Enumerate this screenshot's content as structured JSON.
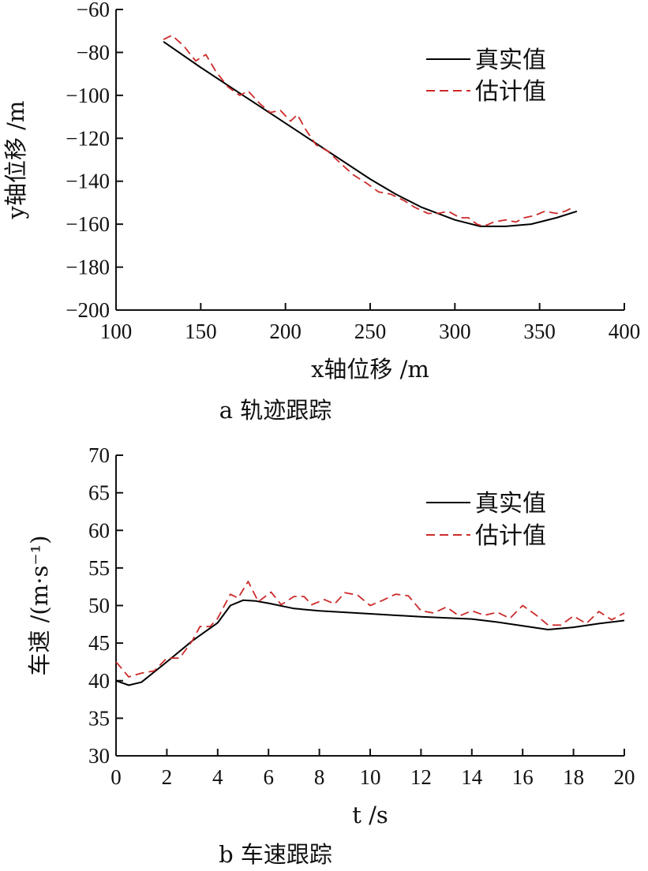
{
  "chart_data": [
    {
      "type": "line",
      "caption": "a 轨迹跟踪",
      "xlabel": "x轴位移 /m",
      "ylabel": "y轴位移 /m",
      "xlim": [
        100,
        400
      ],
      "ylim": [
        -200,
        -60
      ],
      "xticks": [
        100,
        150,
        200,
        250,
        300,
        350,
        400
      ],
      "yticks": [
        -200,
        -180,
        -160,
        -140,
        -120,
        -100,
        -80,
        -60
      ],
      "grid": false,
      "legend": "top-right",
      "series": [
        {
          "name": "真实值",
          "style": "solid",
          "color": "#000000",
          "points": [
            [
              128,
              -75
            ],
            [
              150,
              -87
            ],
            [
              175,
              -100
            ],
            [
              200,
              -113
            ],
            [
              225,
              -126
            ],
            [
              250,
              -139
            ],
            [
              265,
              -146
            ],
            [
              280,
              -152
            ],
            [
              300,
              -158
            ],
            [
              315,
              -161
            ],
            [
              330,
              -161
            ],
            [
              345,
              -160
            ],
            [
              360,
              -157
            ],
            [
              372,
              -154
            ]
          ]
        },
        {
          "name": "估计值",
          "style": "dashed",
          "color": "#cc2b2b",
          "points": [
            [
              128,
              -74
            ],
            [
              133,
              -72
            ],
            [
              140,
              -77
            ],
            [
              147,
              -84
            ],
            [
              153,
              -81
            ],
            [
              159,
              -89
            ],
            [
              166,
              -96
            ],
            [
              173,
              -100
            ],
            [
              178,
              -98
            ],
            [
              185,
              -104
            ],
            [
              191,
              -108
            ],
            [
              197,
              -107
            ],
            [
              203,
              -112
            ],
            [
              207,
              -109
            ],
            [
              212,
              -116
            ],
            [
              218,
              -123
            ],
            [
              225,
              -126
            ],
            [
              233,
              -132
            ],
            [
              240,
              -137
            ],
            [
              248,
              -141
            ],
            [
              255,
              -145
            ],
            [
              262,
              -146
            ],
            [
              270,
              -149
            ],
            [
              276,
              -152
            ],
            [
              284,
              -155
            ],
            [
              290,
              -155
            ],
            [
              296,
              -154
            ],
            [
              303,
              -157
            ],
            [
              308,
              -157
            ],
            [
              313,
              -160
            ],
            [
              317,
              -161
            ],
            [
              323,
              -159
            ],
            [
              330,
              -158
            ],
            [
              336,
              -159
            ],
            [
              341,
              -157
            ],
            [
              347,
              -156
            ],
            [
              353,
              -154
            ],
            [
              360,
              -155
            ],
            [
              365,
              -154
            ],
            [
              370,
              -152
            ]
          ]
        }
      ]
    },
    {
      "type": "line",
      "caption": "b 车速跟踪",
      "xlabel": "t /s",
      "ylabel": "车速 /(m·s⁻¹)",
      "xlim": [
        0,
        20
      ],
      "ylim": [
        30,
        70
      ],
      "xticks": [
        0,
        2,
        4,
        6,
        8,
        10,
        12,
        14,
        16,
        18,
        20
      ],
      "yticks": [
        30,
        35,
        40,
        45,
        50,
        55,
        60,
        65,
        70
      ],
      "grid": false,
      "legend": "top-right",
      "series": [
        {
          "name": "真实值",
          "style": "solid",
          "color": "#000000",
          "points": [
            [
              0,
              40
            ],
            [
              0.5,
              39.4
            ],
            [
              1,
              39.8
            ],
            [
              2,
              42.5
            ],
            [
              3,
              45.3
            ],
            [
              4,
              47.7
            ],
            [
              4.5,
              50
            ],
            [
              5,
              50.7
            ],
            [
              5.5,
              50.6
            ],
            [
              6,
              50.3
            ],
            [
              7,
              49.6
            ],
            [
              8,
              49.3
            ],
            [
              10,
              48.9
            ],
            [
              12,
              48.5
            ],
            [
              14,
              48.2
            ],
            [
              15,
              47.8
            ],
            [
              16,
              47.3
            ],
            [
              17,
              46.8
            ],
            [
              18,
              47.1
            ],
            [
              19,
              47.6
            ],
            [
              20,
              48
            ]
          ]
        },
        {
          "name": "估计值",
          "style": "dashed",
          "color": "#cc2b2b",
          "points": [
            [
              0,
              42.5
            ],
            [
              0.5,
              40.5
            ],
            [
              1,
              41
            ],
            [
              1.5,
              41.3
            ],
            [
              2,
              43
            ],
            [
              2.5,
              43
            ],
            [
              3,
              45.3
            ],
            [
              3.3,
              47.2
            ],
            [
              3.7,
              47.2
            ],
            [
              4,
              48.3
            ],
            [
              4.5,
              51.5
            ],
            [
              4.8,
              51
            ],
            [
              5.2,
              53.2
            ],
            [
              5.6,
              50.5
            ],
            [
              6.1,
              51.8
            ],
            [
              6.5,
              50.1
            ],
            [
              7,
              51.2
            ],
            [
              7.4,
              51.2
            ],
            [
              7.7,
              50.1
            ],
            [
              8.2,
              50.8
            ],
            [
              8.6,
              50.2
            ],
            [
              9,
              51.7
            ],
            [
              9.5,
              51.4
            ],
            [
              10,
              50
            ],
            [
              10.5,
              50.7
            ],
            [
              11,
              51.5
            ],
            [
              11.5,
              51.3
            ],
            [
              12,
              49.3
            ],
            [
              12.5,
              49
            ],
            [
              13,
              49.8
            ],
            [
              13.5,
              48.6
            ],
            [
              14,
              49.3
            ],
            [
              14.5,
              48.7
            ],
            [
              15,
              49.1
            ],
            [
              15.5,
              48.3
            ],
            [
              16,
              50
            ],
            [
              16.5,
              48.8
            ],
            [
              17,
              47.4
            ],
            [
              17.5,
              47.4
            ],
            [
              18,
              48.6
            ],
            [
              18.5,
              47.6
            ],
            [
              19,
              49.2
            ],
            [
              19.5,
              48.1
            ],
            [
              20,
              49
            ]
          ]
        }
      ]
    }
  ]
}
